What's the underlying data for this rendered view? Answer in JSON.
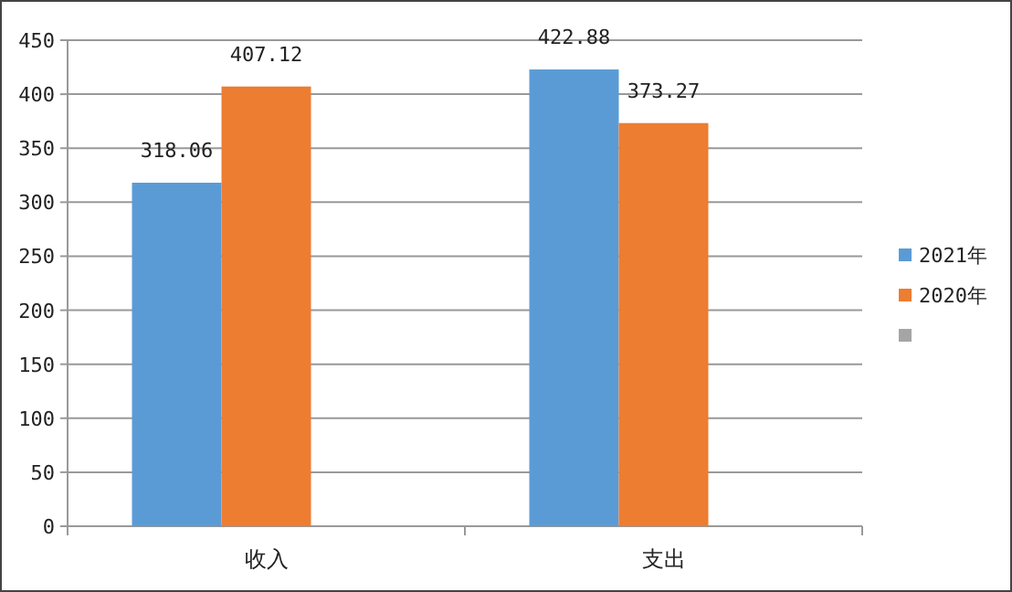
{
  "chart_data": {
    "type": "bar",
    "categories": [
      "收入",
      "支出"
    ],
    "series": [
      {
        "name": "2021年",
        "color": "#5b9bd5",
        "values": [
          318.06,
          422.88
        ]
      },
      {
        "name": "2020年",
        "color": "#ed7d31",
        "values": [
          407.12,
          373.27
        ]
      },
      {
        "color": "#a5a5a5",
        "values": [
          null,
          null
        ]
      }
    ],
    "ylim": [
      0,
      450
    ],
    "yticks": [
      0,
      50,
      100,
      150,
      200,
      250,
      300,
      350,
      400,
      450
    ],
    "grid": "y",
    "legend": "right",
    "data_labels": true
  }
}
